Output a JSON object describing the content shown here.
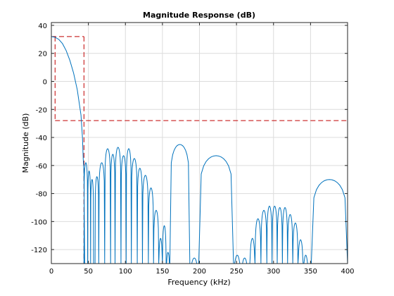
{
  "chart_data": {
    "type": "line",
    "title": "Magnitude Response (dB)",
    "xlabel": "Frequency (kHz)",
    "ylabel": "Magnitude (dB)",
    "xlim": [
      0,
      400
    ],
    "ylim": [
      -130,
      42
    ],
    "xticks": [
      0,
      50,
      100,
      150,
      200,
      250,
      300,
      350,
      400
    ],
    "yticks": [
      40,
      20,
      0,
      -20,
      -40,
      -60,
      -80,
      -100,
      -120
    ],
    "grid": true,
    "series_color": "#0072bd",
    "mask_color": "#c00000",
    "passband_edge_khz": 5,
    "passband_top_db": 32,
    "stopband_edge_khz": 44,
    "stopband_atten_db": -28,
    "main_lobe": [
      [
        0,
        32
      ],
      [
        5,
        31.5
      ],
      [
        10,
        30
      ],
      [
        15,
        27
      ],
      [
        20,
        22
      ],
      [
        25,
        15
      ],
      [
        30,
        6
      ],
      [
        35,
        -6
      ],
      [
        40,
        -24
      ],
      [
        42,
        -40
      ],
      [
        43,
        -55
      ],
      [
        44,
        -65
      ],
      [
        45,
        -130
      ]
    ],
    "sidelobes": [
      {
        "start": 44,
        "end": 49,
        "peak": -58
      },
      {
        "start": 49,
        "end": 53,
        "peak": -64
      },
      {
        "start": 53,
        "end": 57,
        "peak": -70
      },
      {
        "start": 59,
        "end": 64,
        "peak": -68
      },
      {
        "start": 64,
        "end": 72,
        "peak": -58
      },
      {
        "start": 72,
        "end": 80,
        "peak": -48
      },
      {
        "start": 80,
        "end": 86,
        "peak": -52
      },
      {
        "start": 86,
        "end": 94,
        "peak": -47
      },
      {
        "start": 94,
        "end": 101,
        "peak": -53
      },
      {
        "start": 101,
        "end": 108,
        "peak": -48
      },
      {
        "start": 108,
        "end": 116,
        "peak": -55
      },
      {
        "start": 116,
        "end": 123,
        "peak": -62
      },
      {
        "start": 123,
        "end": 131,
        "peak": -67
      },
      {
        "start": 131,
        "end": 138,
        "peak": -76
      },
      {
        "start": 138,
        "end": 145,
        "peak": -92
      },
      {
        "start": 145,
        "end": 150,
        "peak": -112
      },
      {
        "start": 150,
        "end": 155,
        "peak": -103
      },
      {
        "start": 155,
        "end": 160,
        "peak": -122
      },
      {
        "start": 160,
        "end": 187,
        "peak": -45
      },
      {
        "start": 187,
        "end": 199,
        "peak": -126
      },
      {
        "start": 199,
        "end": 246,
        "peak": -53
      },
      {
        "start": 246,
        "end": 256,
        "peak": -124
      },
      {
        "start": 256,
        "end": 266,
        "peak": -126
      },
      {
        "start": 268,
        "end": 275,
        "peak": -112
      },
      {
        "start": 275,
        "end": 283,
        "peak": -98
      },
      {
        "start": 283,
        "end": 291,
        "peak": -92
      },
      {
        "start": 291,
        "end": 298,
        "peak": -89
      },
      {
        "start": 298,
        "end": 305,
        "peak": -89
      },
      {
        "start": 305,
        "end": 312,
        "peak": -90
      },
      {
        "start": 312,
        "end": 319,
        "peak": -90
      },
      {
        "start": 319,
        "end": 326,
        "peak": -95
      },
      {
        "start": 326,
        "end": 333,
        "peak": -101
      },
      {
        "start": 333,
        "end": 340,
        "peak": -113
      },
      {
        "start": 340,
        "end": 347,
        "peak": -124
      },
      {
        "start": 351,
        "end": 400,
        "peak": -70
      }
    ]
  }
}
